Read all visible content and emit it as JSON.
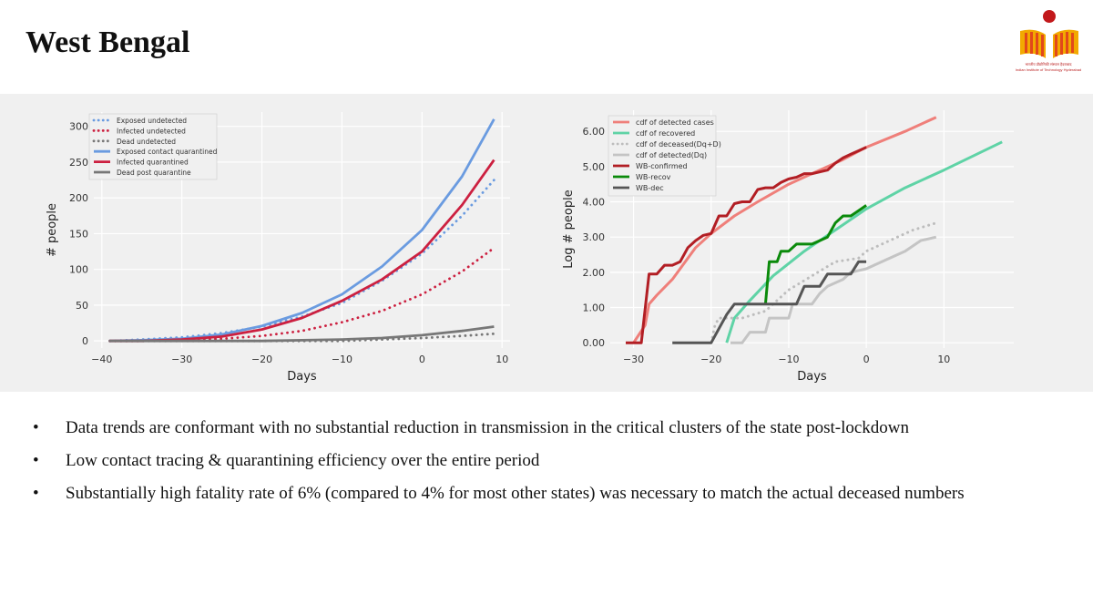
{
  "slide": {
    "title": "West Bengal"
  },
  "logo": {
    "caption_line1": "भारतीय प्रौद्योगिकी संस्थान हैदराबाद",
    "caption_line2": "Indian Institute of Technology Hyderabad"
  },
  "bullets": [
    "Data trends are conformant with no substantial reduction in transmission in the critical clusters of the state post-lockdown",
    "Low contact tracing & quarantining efficiency over the entire period",
    "Substantially high fatality rate of 6% (compared to 4% for most other states) was necessary to match the actual deceased numbers"
  ],
  "chart_data": [
    {
      "type": "line",
      "xlabel": "Days",
      "ylabel": "# people",
      "xlim": [
        -41,
        11
      ],
      "ylim": [
        -10,
        320
      ],
      "xticks": [
        -40,
        -30,
        -20,
        -10,
        0,
        10
      ],
      "yticks": [
        0,
        50,
        100,
        150,
        200,
        250,
        300
      ],
      "legend": "top-left",
      "grid": true,
      "series": [
        {
          "name": "Exposed undetected",
          "color": "#6a9be0",
          "dash": "dotted",
          "x": [
            -39,
            -35,
            -30,
            -25,
            -20,
            -15,
            -10,
            -5,
            0,
            5,
            9
          ],
          "y": [
            0,
            2,
            5,
            11,
            20,
            34,
            53,
            84,
            122,
            175,
            225
          ]
        },
        {
          "name": "Infected undetected",
          "color": "#cc2040",
          "dash": "dotted",
          "x": [
            -39,
            -35,
            -30,
            -25,
            -20,
            -15,
            -10,
            -5,
            0,
            5,
            9
          ],
          "y": [
            0,
            0,
            1,
            3,
            7,
            14,
            26,
            42,
            65,
            97,
            130
          ]
        },
        {
          "name": "Dead undetected",
          "color": "#777777",
          "dash": "dotted",
          "x": [
            -39,
            -30,
            -20,
            -10,
            -5,
            0,
            5,
            9
          ],
          "y": [
            0,
            0,
            0,
            0,
            2,
            4,
            7,
            10
          ]
        },
        {
          "name": "Exposed contact quarantined",
          "color": "#6a9be0",
          "dash": "solid",
          "x": [
            -39,
            -35,
            -30,
            -25,
            -20,
            -15,
            -10,
            -5,
            0,
            5,
            9
          ],
          "y": [
            0,
            1,
            3,
            9,
            21,
            39,
            65,
            104,
            155,
            230,
            310
          ]
        },
        {
          "name": "Infected quarantined",
          "color": "#cc2040",
          "dash": "solid",
          "x": [
            -39,
            -35,
            -30,
            -25,
            -20,
            -15,
            -10,
            -5,
            0,
            5,
            9
          ],
          "y": [
            0,
            0,
            2,
            6,
            16,
            32,
            56,
            86,
            125,
            190,
            253
          ]
        },
        {
          "name": "Dead post quarantine",
          "color": "#777777",
          "dash": "solid",
          "x": [
            -39,
            -30,
            -20,
            -10,
            -5,
            0,
            5,
            9
          ],
          "y": [
            0,
            0,
            0,
            2,
            4,
            8,
            14,
            20
          ]
        }
      ]
    },
    {
      "type": "line",
      "xlabel": "Days",
      "ylabel": "Log # people",
      "xlim": [
        -33,
        19
      ],
      "ylim": [
        -0.15,
        6.6
      ],
      "xticks": [
        -30,
        -20,
        -10,
        0,
        10
      ],
      "yticks": [
        "0.00",
        "1.00",
        "2.00",
        "3.00",
        "4.00",
        "5.00",
        "6.00"
      ],
      "legend": "top-left",
      "grid": true,
      "series": [
        {
          "name": "cdf of detected cases",
          "color": "#ef7f7a",
          "dash": "solid",
          "width": 3,
          "x": [
            -30,
            -28.5,
            -28,
            -27,
            -25,
            -22,
            -20,
            -17,
            -14,
            -10,
            -7,
            -3,
            0,
            5,
            9
          ],
          "y": [
            0,
            0.5,
            1.1,
            1.35,
            1.8,
            2.7,
            3.1,
            3.6,
            4.0,
            4.5,
            4.8,
            5.2,
            5.55,
            6.0,
            6.4
          ]
        },
        {
          "name": "cdf of recovered",
          "color": "#5fd3a6",
          "dash": "solid",
          "width": 3,
          "x": [
            -18,
            -17,
            -15,
            -12,
            -8,
            -4,
            0,
            5,
            10,
            17.5
          ],
          "y": [
            0,
            0.7,
            1.2,
            1.9,
            2.6,
            3.2,
            3.8,
            4.4,
            4.9,
            5.7
          ]
        },
        {
          "name": "cdf of deceased(Dq+D)",
          "color": "#bdbdbd",
          "dash": "dotted",
          "width": 3,
          "x": [
            -20,
            -19.5,
            -19,
            -16,
            -13,
            -10,
            -7,
            -4,
            -1,
            0,
            3,
            6,
            9
          ],
          "y": [
            0,
            0.5,
            0.7,
            0.7,
            0.9,
            1.5,
            1.9,
            2.3,
            2.4,
            2.6,
            2.9,
            3.2,
            3.4
          ]
        },
        {
          "name": "cdf of detected(Dq)",
          "color": "#c4c4c4",
          "dash": "solid",
          "width": 3,
          "x": [
            -17.5,
            -16,
            -15,
            -13,
            -12.5,
            -10,
            -9.5,
            -7,
            -6,
            -5,
            -3,
            -2,
            0,
            3,
            5,
            7,
            9
          ],
          "y": [
            0,
            0,
            0.3,
            0.3,
            0.7,
            0.7,
            1.1,
            1.1,
            1.4,
            1.6,
            1.8,
            2.0,
            2.1,
            2.4,
            2.6,
            2.9,
            3.0
          ]
        },
        {
          "name": "WB-confirmed",
          "color": "#b21e24",
          "dash": "solid",
          "width": 3,
          "x": [
            -31,
            -29,
            -28,
            -27,
            -26,
            -25,
            -24,
            -23,
            -22,
            -21,
            -20,
            -19,
            -18,
            -17,
            -16,
            -15,
            -14,
            -13,
            -12,
            -11,
            -10,
            -9,
            -8,
            -7,
            -6,
            -5,
            -4,
            -3,
            -2,
            -1,
            0
          ],
          "y": [
            0,
            0,
            1.95,
            1.95,
            2.2,
            2.2,
            2.3,
            2.7,
            2.9,
            3.05,
            3.1,
            3.6,
            3.6,
            3.95,
            4.0,
            4.0,
            4.35,
            4.4,
            4.4,
            4.55,
            4.65,
            4.7,
            4.8,
            4.8,
            4.85,
            4.9,
            5.1,
            5.25,
            5.35,
            5.45,
            5.55
          ]
        },
        {
          "name": "WB-recov",
          "color": "#0a8a0a",
          "dash": "solid",
          "width": 3,
          "x": [
            -13,
            -12.5,
            -11.5,
            -11,
            -10,
            -9,
            -8,
            -7,
            -6,
            -5,
            -4,
            -3,
            -2,
            -1,
            0
          ],
          "y": [
            1.1,
            2.3,
            2.3,
            2.6,
            2.6,
            2.8,
            2.8,
            2.8,
            2.9,
            3.0,
            3.4,
            3.6,
            3.6,
            3.75,
            3.9
          ]
        },
        {
          "name": "WB-dec",
          "color": "#555555",
          "dash": "solid",
          "width": 3,
          "x": [
            -25,
            -20,
            -19,
            -18,
            -17,
            -16,
            -13,
            -12,
            -9,
            -8,
            -6,
            -5,
            -4,
            -2,
            -1,
            0
          ],
          "y": [
            0,
            0,
            0.4,
            0.8,
            1.1,
            1.1,
            1.1,
            1.1,
            1.1,
            1.6,
            1.6,
            1.95,
            1.95,
            1.95,
            2.3,
            2.3
          ]
        }
      ]
    }
  ]
}
